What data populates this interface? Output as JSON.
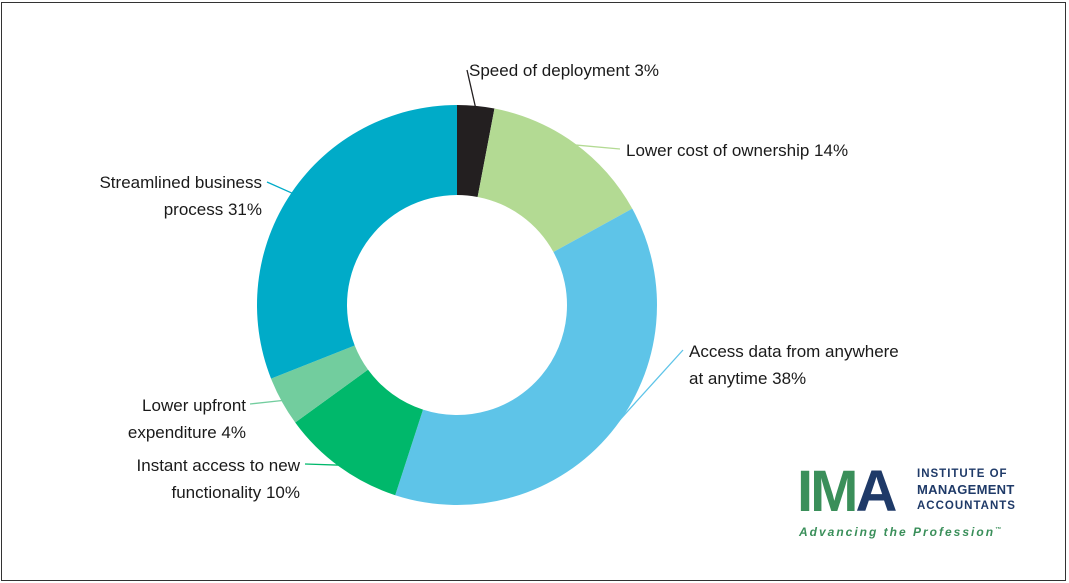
{
  "chart_data": {
    "type": "pie",
    "variant": "donut",
    "title": "",
    "slices": [
      {
        "label_lines": [
          "Speed of deployment 3%"
        ],
        "value": 3,
        "color": "#231f20"
      },
      {
        "label_lines": [
          "Lower cost of ownership 14%"
        ],
        "value": 14,
        "color": "#b3da93"
      },
      {
        "label_lines": [
          "Access data from anywhere",
          "at anytime 38%"
        ],
        "value": 38,
        "color": "#5ec4e8"
      },
      {
        "label_lines": [
          "Instant access to new",
          "functionality 10%"
        ],
        "value": 10,
        "color": "#00b86b"
      },
      {
        "label_lines": [
          "Lower upfront",
          "expenditure 4%"
        ],
        "value": 4,
        "color": "#72cd9e"
      },
      {
        "label_lines": [
          "Streamlined business",
          "process 31%"
        ],
        "value": 31,
        "color": "#00abc8"
      }
    ]
  },
  "logo": {
    "letters": [
      "I",
      "M",
      "A"
    ],
    "letter_colors": [
      "#3a8f5a",
      "#3a8f5a",
      "#1f3a68"
    ],
    "line1": "INSTITUTE OF",
    "line2": "MANAGEMENT",
    "line3": "ACCOUNTANTS",
    "tagline": "Advancing the Profession",
    "tm": "™"
  }
}
